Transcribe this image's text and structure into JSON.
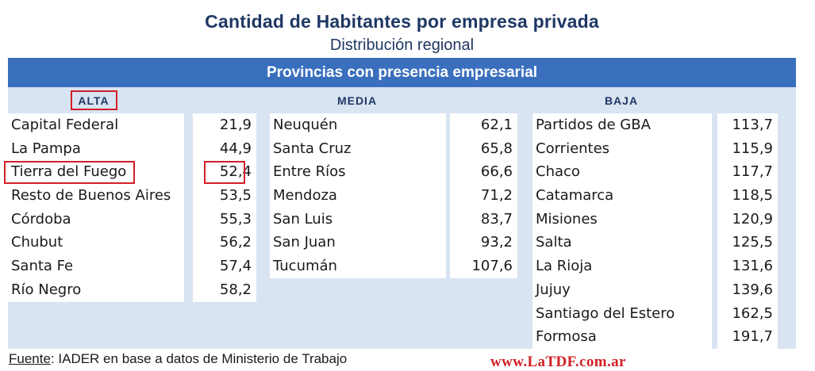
{
  "title": "Cantidad de Habitantes por empresa privada",
  "subtitle": "Distribución regional",
  "banner": "Provincias con presencia empresarial",
  "highlight_color": "#d21f26",
  "bar_color": "#3a6fbe",
  "groups": [
    {
      "label": "ALTA",
      "rows": [
        {
          "name": "Capital Federal",
          "value": "21,9"
        },
        {
          "name": "La Pampa",
          "value": "44,9"
        },
        {
          "name": "Tierra del Fuego",
          "value": "52,4"
        },
        {
          "name": "Resto de Buenos Aires",
          "value": "53,5"
        },
        {
          "name": "Córdoba",
          "value": "55,3"
        },
        {
          "name": "Chubut",
          "value": "56,2"
        },
        {
          "name": "Santa Fe",
          "value": "57,4"
        },
        {
          "name": "Río Negro",
          "value": "58,2"
        }
      ]
    },
    {
      "label": "MEDIA",
      "rows": [
        {
          "name": "Neuquén",
          "value": "62,1"
        },
        {
          "name": "Santa Cruz",
          "value": "65,8"
        },
        {
          "name": "Entre Ríos",
          "value": "66,6"
        },
        {
          "name": "Mendoza",
          "value": "71,2"
        },
        {
          "name": "San Luis",
          "value": "83,7"
        },
        {
          "name": "San Juan",
          "value": "93,2"
        },
        {
          "name": "Tucumán",
          "value": "107,6"
        }
      ]
    },
    {
      "label": "BAJA",
      "rows": [
        {
          "name": "Partidos de GBA",
          "value": "113,7"
        },
        {
          "name": "Corrientes",
          "value": "115,9"
        },
        {
          "name": "Chaco",
          "value": "117,7"
        },
        {
          "name": "Catamarca",
          "value": "118,5"
        },
        {
          "name": "Misiones",
          "value": "120,9"
        },
        {
          "name": "Salta",
          "value": "125,5"
        },
        {
          "name": "La Rioja",
          "value": "131,6"
        },
        {
          "name": "Jujuy",
          "value": "139,6"
        },
        {
          "name": "Santiago del Estero",
          "value": "162,5"
        },
        {
          "name": "Formosa",
          "value": "191,7"
        }
      ]
    }
  ],
  "footer": {
    "source_label": "Fuente",
    "source_text": ": IADER en base a datos de Ministerio de Trabajo"
  },
  "watermark": "www.LaTDF.com.ar"
}
